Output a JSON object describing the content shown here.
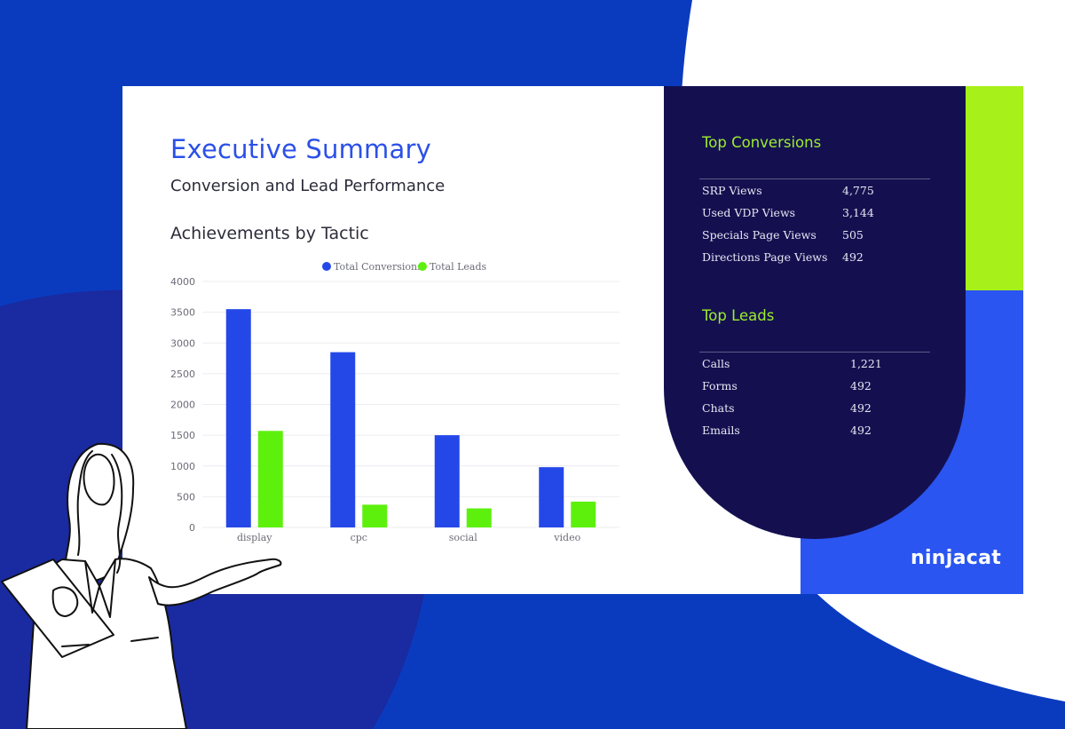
{
  "slide": {
    "title": "Executive Summary",
    "subtitle": "Conversion and Lead Performance",
    "chart_heading": "Achievements by Tactic"
  },
  "chart_data": {
    "type": "bar",
    "title": "Achievements by Tactic",
    "categories": [
      "display",
      "cpc",
      "social",
      "video"
    ],
    "series": [
      {
        "name": "Total Conversions",
        "values": [
          3550,
          2850,
          1500,
          980
        ],
        "color": "#2448e8"
      },
      {
        "name": "Total Leads",
        "values": [
          1570,
          370,
          310,
          420
        ],
        "color": "#5df00d"
      }
    ],
    "ylim": [
      0,
      4000
    ],
    "yticks": [
      "0",
      "500",
      "1000",
      "1500",
      "2000",
      "2500",
      "3000",
      "3500",
      "4000"
    ],
    "legend": "top",
    "grid": true,
    "xlabel": "",
    "ylabel": ""
  },
  "top_conversions": {
    "title": "Top Conversions",
    "rows": [
      {
        "label": "SRP Views",
        "value": "4,775"
      },
      {
        "label": "Used VDP Views",
        "value": "3,144"
      },
      {
        "label": "Specials Page Views",
        "value": "505"
      },
      {
        "label": "Directions Page Views",
        "value": "492"
      }
    ]
  },
  "top_leads": {
    "title": "Top Leads",
    "rows": [
      {
        "label": "Calls",
        "value": "1,221"
      },
      {
        "label": "Forms",
        "value": "492"
      },
      {
        "label": "Chats",
        "value": "492"
      },
      {
        "label": "Emails",
        "value": "492"
      }
    ]
  },
  "brand": {
    "logo_text": "ninjacat"
  },
  "colors": {
    "page_bg": "#0a3bbf",
    "accent_blue": "#2b50e8",
    "panel_dark": "#141050",
    "accent_green": "#a8f01a"
  }
}
